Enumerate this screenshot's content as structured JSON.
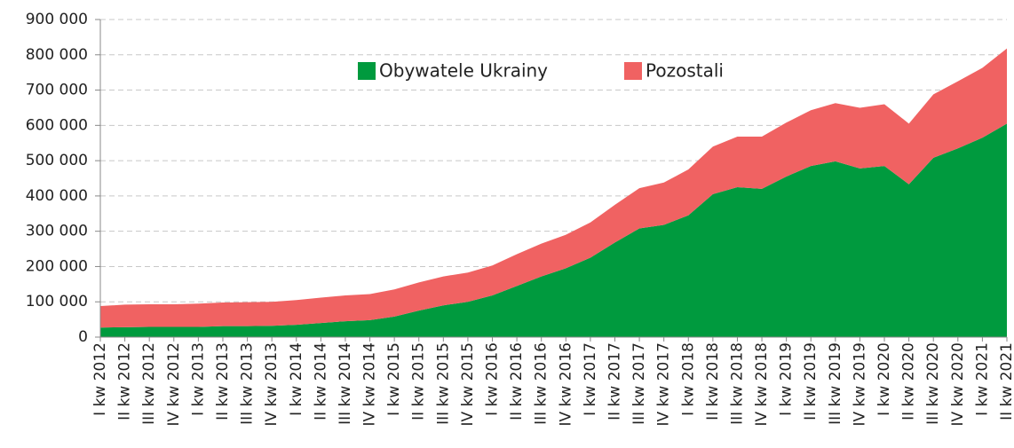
{
  "chart_data": {
    "type": "area",
    "stacked": true,
    "categories": [
      "I kw 2012",
      "II kw 2012",
      "III kw 2012",
      "IV kw 2012",
      "I kw 2013",
      "II kw 2013",
      "III kw 2013",
      "IV kw 2013",
      "I kw 2014",
      "II kw 2014",
      "III kw 2014",
      "IV kw 2014",
      "I kw 2015",
      "II kw 2015",
      "III kw 2015",
      "IV kw 2015",
      "I kw 2016",
      "II kw 2016",
      "III kw 2016",
      "IV kw 2016",
      "I kw 2017",
      "II kw 2017",
      "III kw 2017",
      "IV kw 2017",
      "I kw 2018",
      "II kw 2018",
      "III kw 2018",
      "IV kw 2018",
      "I kw 2019",
      "II kw 2019",
      "III kw 2019",
      "IV kw 2019",
      "I kw 2020",
      "II kw 2020",
      "III kw 2020",
      "IV kw 2020",
      "I kw 2021",
      "II kw 2021"
    ],
    "series": [
      {
        "name": "Obywatele Ukrainy",
        "color": "#009a3e",
        "values": [
          27000,
          28000,
          29000,
          29000,
          29000,
          31000,
          31000,
          32000,
          35000,
          40000,
          45000,
          48000,
          58000,
          75000,
          90000,
          100000,
          118000,
          145000,
          172000,
          195000,
          225000,
          268000,
          308000,
          318000,
          345000,
          405000,
          425000,
          420000,
          455000,
          485000,
          498000,
          478000,
          485000,
          433000,
          508000,
          535000,
          565000,
          605000
        ]
      },
      {
        "name": "Pozostali",
        "color": "#f06262",
        "values": [
          61000,
          64000,
          64000,
          64000,
          66000,
          67000,
          68000,
          68000,
          70000,
          72000,
          73000,
          74000,
          77000,
          80000,
          82000,
          83000,
          85000,
          90000,
          93000,
          95000,
          100000,
          107000,
          114000,
          120000,
          130000,
          135000,
          143000,
          148000,
          153000,
          158000,
          165000,
          172000,
          175000,
          172000,
          180000,
          190000,
          198000,
          213000
        ]
      }
    ],
    "ylim": [
      0,
      900000
    ],
    "yticks": [
      0,
      {
        "value": 100000,
        "label": "100 000"
      },
      {
        "value": 200000,
        "label": "200 000"
      },
      {
        "value": 300000,
        "label": "300 000"
      },
      {
        "value": 400000,
        "label": "400 000"
      },
      {
        "value": 500000,
        "label": "500 000"
      },
      {
        "value": 600000,
        "label": "600 000"
      },
      {
        "value": 700000,
        "label": "700 000"
      },
      {
        "value": 800000,
        "label": "800 000"
      },
      {
        "value": 900000,
        "label": "900 000"
      }
    ],
    "grid": true,
    "legend": "top"
  }
}
